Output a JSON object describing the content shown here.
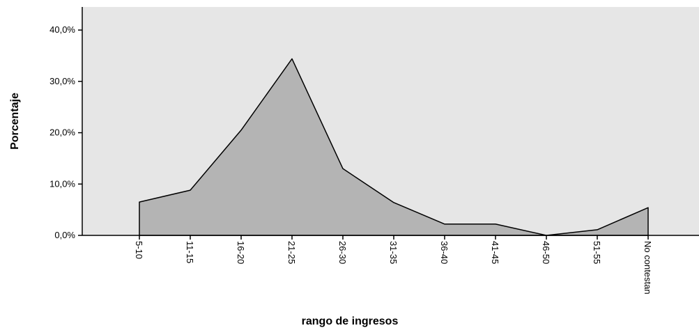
{
  "chart_data": {
    "type": "area",
    "x_label": "rango de ingresos",
    "y_label": "Porcentaje",
    "categories": [
      "5-10",
      "11-15",
      "16-20",
      "21-25",
      "26-30",
      "31-35",
      "36-40",
      "41-45",
      "46-50",
      "51-55",
      "No contestan"
    ],
    "values": [
      6.5,
      8.8,
      20.5,
      34.4,
      13.0,
      6.4,
      2.2,
      2.2,
      0,
      1.1,
      5.4
    ],
    "color": "#b4b4b4",
    "ylim": [
      0,
      44.5
    ],
    "yticks": [
      {
        "value": 0,
        "label": "0,0%"
      },
      {
        "value": 10,
        "label": "10,0%"
      },
      {
        "value": 20,
        "label": "20,0%"
      },
      {
        "value": 30,
        "label": "30,0%"
      },
      {
        "value": 40,
        "label": "40,0%"
      }
    ]
  }
}
